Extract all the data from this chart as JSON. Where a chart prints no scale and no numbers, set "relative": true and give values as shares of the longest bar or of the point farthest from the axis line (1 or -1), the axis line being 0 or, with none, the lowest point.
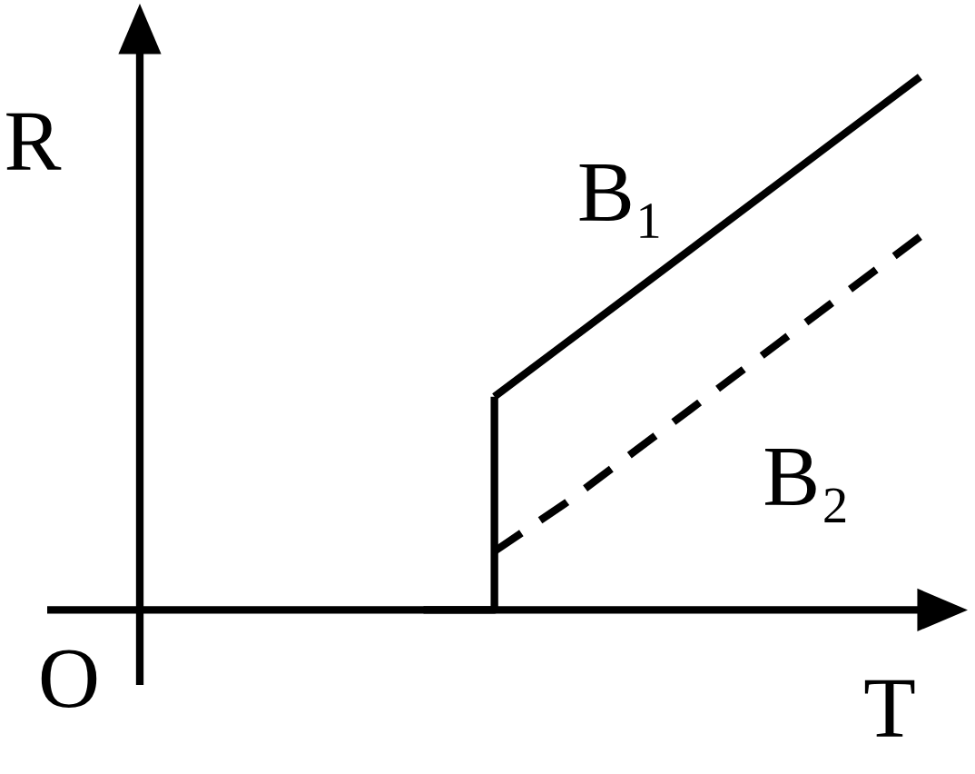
{
  "chart_data": {
    "type": "line",
    "relative": true,
    "xlabel": "T",
    "ylabel": "R",
    "annotations": [
      "O"
    ],
    "tick_labels": false,
    "categories": [
      null,
      null,
      null,
      null,
      null,
      null,
      null,
      null,
      null,
      null,
      null,
      null
    ],
    "series": [
      {
        "type": "step",
        "color": "#000000",
        "values": [
          null,
          null,
          null,
          null,
          0,
          0.4,
          null,
          null,
          null,
          null,
          null,
          null
        ],
        "line_style": "solid"
      },
      {
        "name": "B₁",
        "color": "#000000",
        "values": [
          null,
          null,
          null,
          null,
          null,
          0.4,
          0.5,
          0.6,
          0.7,
          0.8,
          0.9,
          1.0
        ],
        "line_style": "solid"
      },
      {
        "name": "B₂",
        "color": "#000000",
        "values": [
          null,
          null,
          null,
          null,
          null,
          0.11,
          0.2,
          0.3,
          0.4,
          0.5,
          0.6,
          0.7
        ],
        "line_style": "dashed"
      }
    ]
  }
}
